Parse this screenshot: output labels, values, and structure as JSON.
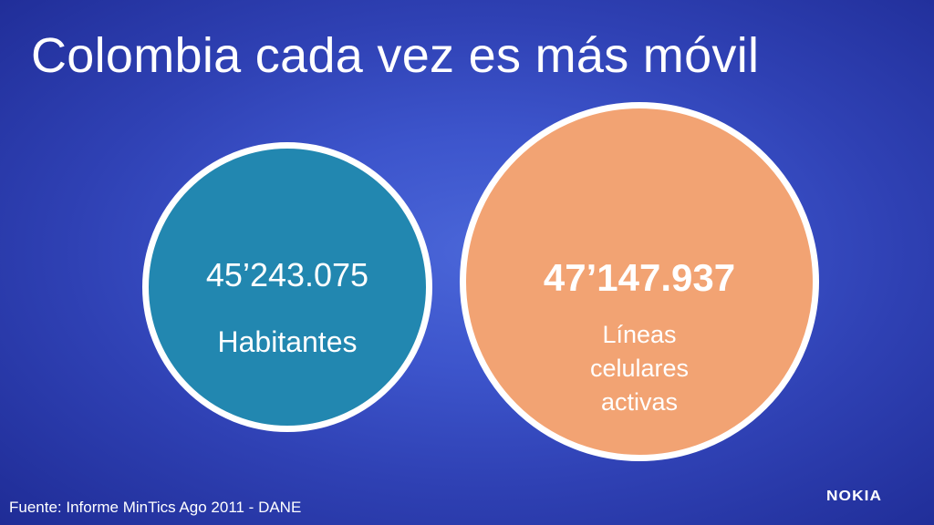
{
  "slide": {
    "title": "Colombia cada vez es más móvil",
    "left_circle": {
      "number": "45’243.075",
      "label": "Habitantes",
      "color": "#2287b0"
    },
    "right_circle": {
      "number": "47’147.937",
      "label_lines": [
        "Líneas",
        "celulares",
        "activas"
      ],
      "color": "#f2a373"
    },
    "footer": {
      "source": "Fuente: Informe MinTics Ago 2011 - DANE",
      "logo_text": "NOKIA"
    }
  }
}
